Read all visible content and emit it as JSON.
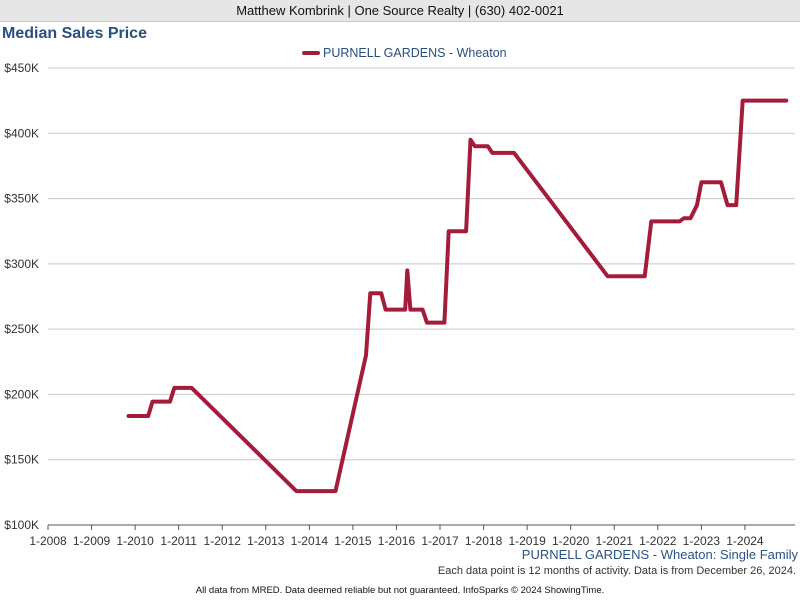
{
  "header": {
    "agent_line": "Matthew Kombrink | One Source Realty | (630) 402-0021"
  },
  "colors": {
    "series": "#a31d3a",
    "title": "#2a4f7e",
    "grid": "#c8c8c8"
  },
  "chart_data": {
    "type": "line",
    "title": "Median Sales Price",
    "legend_position": "top-center",
    "grid": true,
    "series": [
      {
        "name": "PURNELL GARDENS - Wheaton",
        "points": [
          {
            "x": 2009.85,
            "y": 183500
          },
          {
            "x": 2010.3,
            "y": 183500
          },
          {
            "x": 2010.4,
            "y": 194500
          },
          {
            "x": 2010.8,
            "y": 194500
          },
          {
            "x": 2010.9,
            "y": 205000
          },
          {
            "x": 2011.3,
            "y": 205000
          },
          {
            "x": 2013.7,
            "y": 126000
          },
          {
            "x": 2014.6,
            "y": 126000
          },
          {
            "x": 2015.3,
            "y": 230000
          },
          {
            "x": 2015.4,
            "y": 277500
          },
          {
            "x": 2015.65,
            "y": 277500
          },
          {
            "x": 2015.75,
            "y": 265000
          },
          {
            "x": 2016.2,
            "y": 265000
          },
          {
            "x": 2016.25,
            "y": 295000
          },
          {
            "x": 2016.32,
            "y": 265000
          },
          {
            "x": 2016.6,
            "y": 265000
          },
          {
            "x": 2016.7,
            "y": 255000
          },
          {
            "x": 2017.1,
            "y": 255000
          },
          {
            "x": 2017.2,
            "y": 325000
          },
          {
            "x": 2017.6,
            "y": 325000
          },
          {
            "x": 2017.7,
            "y": 395000
          },
          {
            "x": 2017.8,
            "y": 390000
          },
          {
            "x": 2018.1,
            "y": 390000
          },
          {
            "x": 2018.2,
            "y": 385000
          },
          {
            "x": 2018.7,
            "y": 385000
          },
          {
            "x": 2020.85,
            "y": 290500
          },
          {
            "x": 2021.7,
            "y": 290500
          },
          {
            "x": 2021.85,
            "y": 332500
          },
          {
            "x": 2022.5,
            "y": 332500
          },
          {
            "x": 2022.6,
            "y": 335000
          },
          {
            "x": 2022.75,
            "y": 335000
          },
          {
            "x": 2022.9,
            "y": 345000
          },
          {
            "x": 2023.0,
            "y": 362500
          },
          {
            "x": 2023.45,
            "y": 362500
          },
          {
            "x": 2023.6,
            "y": 345000
          },
          {
            "x": 2023.8,
            "y": 345000
          },
          {
            "x": 2023.95,
            "y": 425000
          },
          {
            "x": 2024.95,
            "y": 425000
          }
        ]
      }
    ],
    "y_ticks": [
      "$100K",
      "$150K",
      "$200K",
      "$250K",
      "$300K",
      "$350K",
      "$400K",
      "$450K"
    ],
    "y_tick_values": [
      100000,
      150000,
      200000,
      250000,
      300000,
      350000,
      400000,
      450000
    ],
    "x_ticks": [
      "1-2008",
      "1-2009",
      "1-2010",
      "1-2011",
      "1-2012",
      "1-2013",
      "1-2014",
      "1-2015",
      "1-2016",
      "1-2017",
      "1-2018",
      "1-2019",
      "1-2020",
      "1-2021",
      "1-2022",
      "1-2023",
      "1-2024"
    ],
    "x_tick_values": [
      2008,
      2009,
      2010,
      2011,
      2012,
      2013,
      2014,
      2015,
      2016,
      2017,
      2018,
      2019,
      2020,
      2021,
      2022,
      2023,
      2024
    ],
    "xlim": [
      2008,
      2025.15
    ],
    "ylim": [
      100000,
      450000
    ]
  },
  "footer": {
    "subtitle": "PURNELL GARDENS - Wheaton: Single Family",
    "note": "Each data point is 12 months of activity. Data is from December 26, 2024.",
    "credit": "All data from MRED. Data deemed reliable but not guaranteed. InfoSparks © 2024 ShowingTime."
  }
}
